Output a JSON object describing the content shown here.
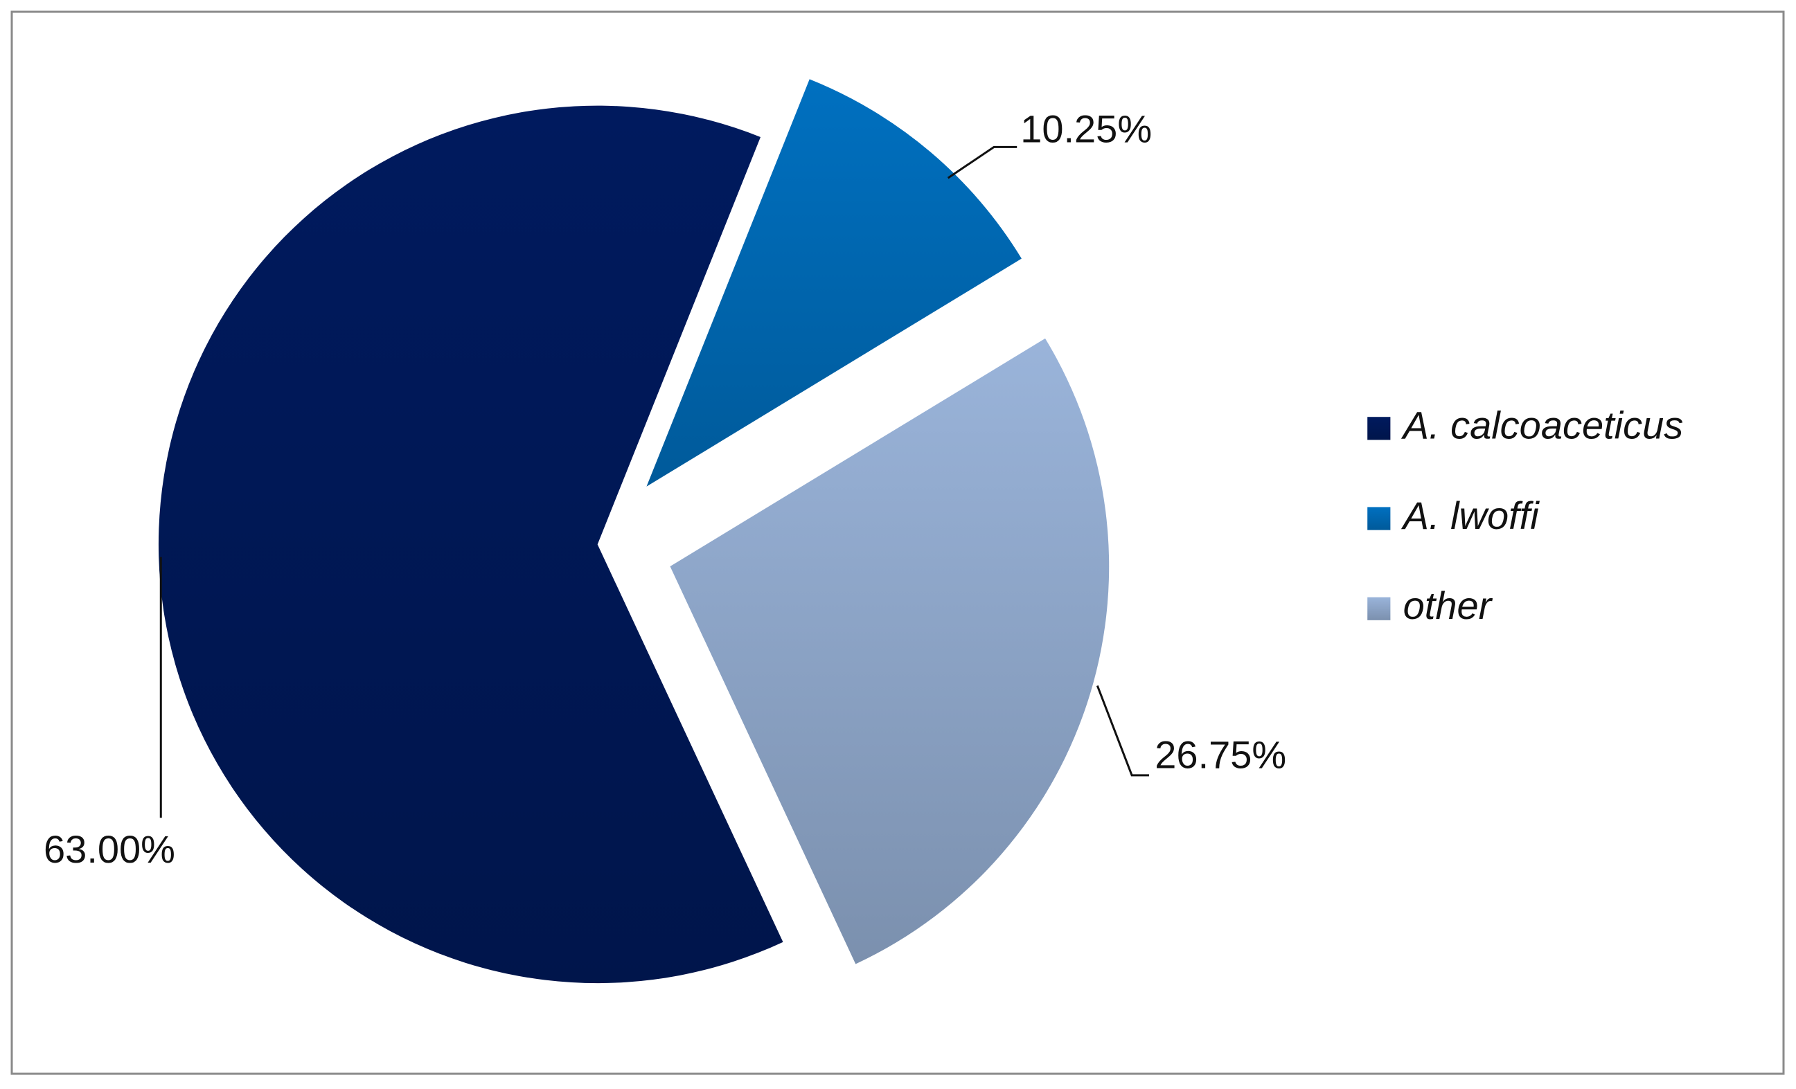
{
  "chart_data": {
    "type": "pie",
    "categories": [
      "A. calcoaceticus",
      "A. lwoffi",
      "other"
    ],
    "values": [
      63,
      10.25,
      26.75
    ],
    "value_labels": [
      "63.00%",
      "10.25%",
      "26.75%"
    ],
    "colors": [
      "#001a5e",
      "#0070c0",
      "#9ab4da"
    ],
    "legend": "right"
  }
}
